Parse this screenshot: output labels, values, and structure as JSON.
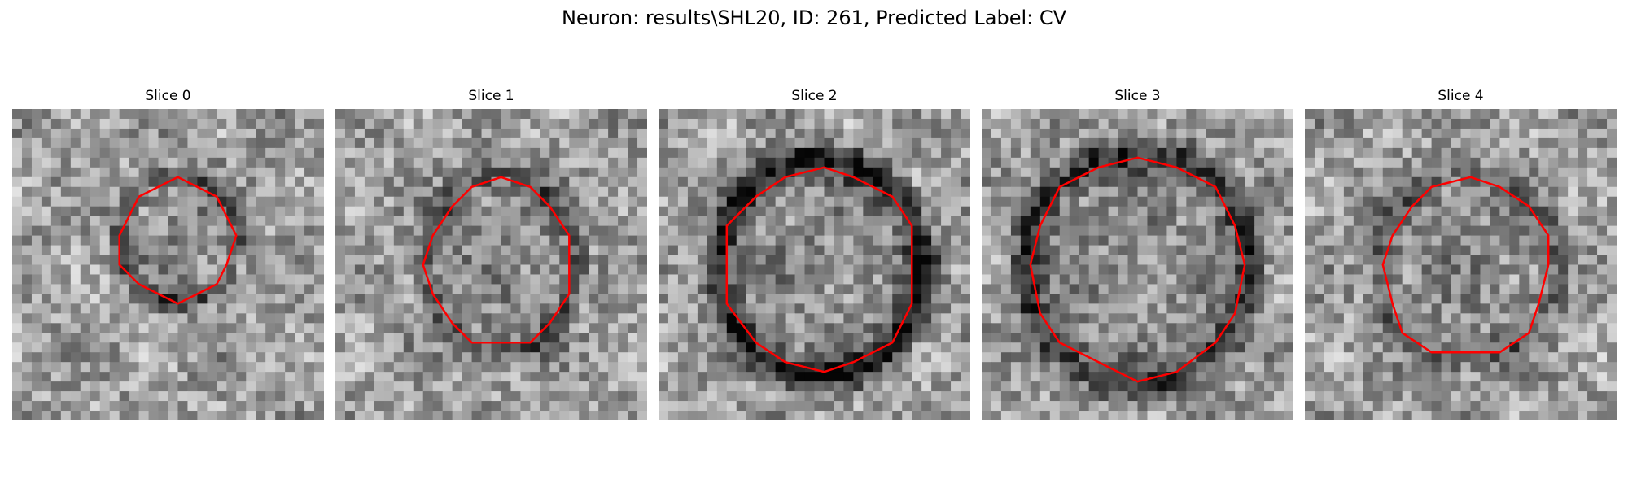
{
  "figure": {
    "title": "Neuron: results\\SHL20, ID: 261, Predicted Label: CV"
  },
  "panels": [
    {
      "title": "Slice 0"
    },
    {
      "title": "Slice 1"
    },
    {
      "title": "Slice 2"
    },
    {
      "title": "Slice 3"
    },
    {
      "title": "Slice 4"
    }
  ],
  "colors": {
    "contour": "#ff0000",
    "background": "#ffffff"
  }
}
